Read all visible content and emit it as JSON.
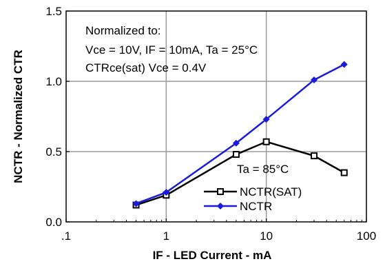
{
  "chart_data": {
    "type": "line",
    "xlabel": "IF  -  LED  Current  -  mA",
    "ylabel": "NCTR  -  Normalized  CTR",
    "x_scale": "log",
    "xlim": [
      0.1,
      100
    ],
    "ylim": [
      0.0,
      1.5
    ],
    "x_ticks": [
      0.1,
      1,
      10,
      100
    ],
    "x_tick_labels": [
      ".1",
      "1",
      "10",
      "100"
    ],
    "y_ticks": [
      0.0,
      0.5,
      1.0,
      1.5
    ],
    "y_tick_labels": [
      "0.0",
      "0.5",
      "1.0",
      "1.5"
    ],
    "grid": true,
    "annotations": [
      "Normalized to:",
      "Vce = 10V, IF = 10mA, Ta = 25°C",
      "CTRce(sat) Vce = 0.4V",
      "Ta = 85°C"
    ],
    "series": [
      {
        "name": "NCTR(SAT)",
        "color": "#000000",
        "marker": "open-square",
        "x": [
          0.5,
          1.0,
          5.0,
          10.0,
          30.0,
          60.0
        ],
        "y": [
          0.12,
          0.19,
          0.48,
          0.57,
          0.47,
          0.35
        ]
      },
      {
        "name": "NCTR",
        "color": "#1a1adc",
        "marker": "filled-diamond",
        "x": [
          0.5,
          1.0,
          5.0,
          10.0,
          30.0,
          60.0
        ],
        "y": [
          0.13,
          0.21,
          0.56,
          0.73,
          1.01,
          1.12
        ]
      }
    ],
    "legend_placement": "bottom-right"
  }
}
